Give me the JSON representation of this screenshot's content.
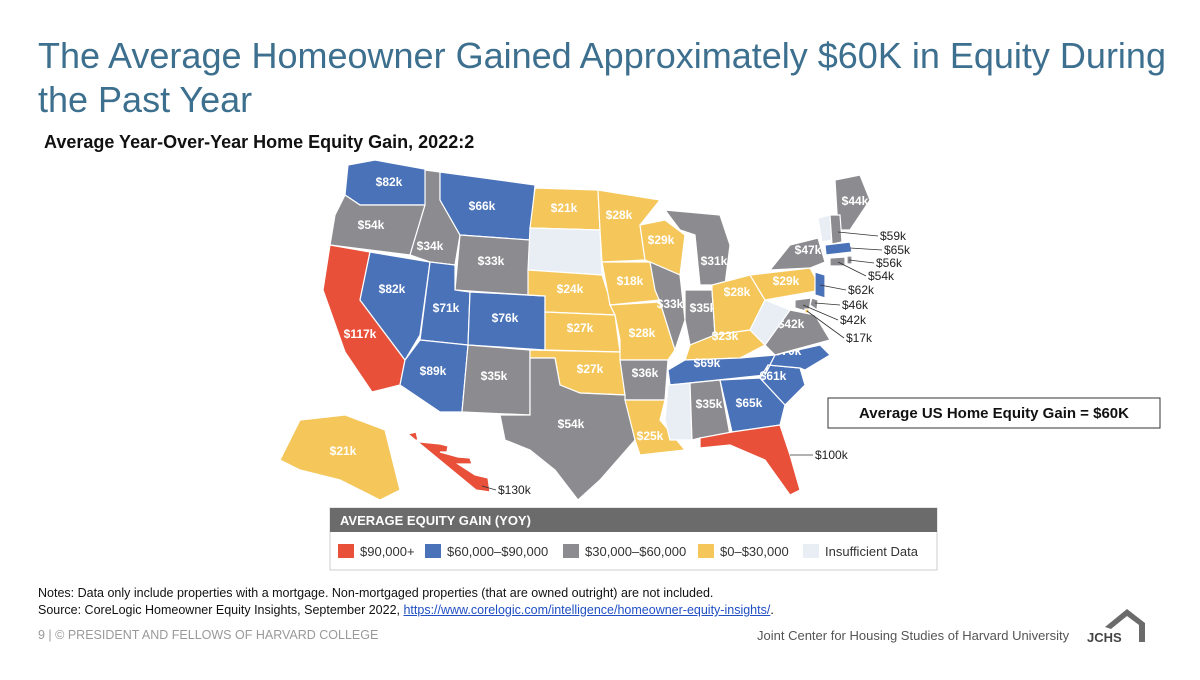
{
  "header": {
    "title": "The Average Homeowner Gained Approximately $60K in Equity During the Past Year",
    "subtitle": "Average Year-Over-Year Home Equity Gain, 2022:2"
  },
  "map": {
    "states": [
      {
        "label": "$82k",
        "color": "#4a72b8"
      },
      {
        "label": "$54k",
        "color": "#8c8c90"
      },
      {
        "label": "$117k",
        "color": "#e8503a"
      },
      {
        "label": "$82k",
        "color": "#4a72b8"
      },
      {
        "label": "$34k",
        "color": "#8c8c90"
      },
      {
        "label": "$66k",
        "color": "#4a72b8"
      },
      {
        "label": "$33k",
        "color": "#8c8c90"
      },
      {
        "label": "$71k",
        "color": "#4a72b8"
      },
      {
        "label": "$76k",
        "color": "#4a72b8"
      },
      {
        "label": "$89k",
        "color": "#4a72b8"
      },
      {
        "label": "$35k",
        "color": "#8c8c90"
      },
      {
        "label": "$21k",
        "color": "#f5c75a"
      },
      {
        "color": "#e8eef4"
      },
      {
        "label": "$24k",
        "color": "#f5c75a"
      },
      {
        "label": "$27k",
        "color": "#f5c75a"
      },
      {
        "label": "$27k",
        "color": "#f5c75a"
      },
      {
        "label": "$54k",
        "color": "#8c8c90"
      },
      {
        "label": "$28k",
        "color": "#f5c75a"
      },
      {
        "label": "$18k",
        "color": "#f5c75a"
      },
      {
        "label": "$28k",
        "color": "#f5c75a"
      },
      {
        "label": "$36k",
        "color": "#8c8c90"
      },
      {
        "label": "$25k",
        "color": "#f5c75a"
      },
      {
        "label": "$29k",
        "color": "#f5c75a"
      },
      {
        "label": "$33k",
        "color": "#8c8c90"
      },
      {
        "label": "$31k",
        "color": "#8c8c90"
      },
      {
        "label": "$35k",
        "color": "#8c8c90"
      },
      {
        "label": "$28k",
        "color": "#f5c75a"
      },
      {
        "label": "$23k",
        "color": "#f5c75a"
      },
      {
        "label": "$69k",
        "color": "#4a72b8"
      },
      {
        "color": "#e8eef4"
      },
      {
        "label": "$35k",
        "color": "#8c8c90"
      },
      {
        "label": "$65k",
        "color": "#4a72b8"
      },
      {
        "label": "$100k",
        "color": "#e8503a"
      },
      {
        "label": "$61k",
        "color": "#4a72b8"
      },
      {
        "label": "$70k",
        "color": "#4a72b8"
      },
      {
        "label": "$42k",
        "color": "#8c8c90"
      },
      {
        "color": "#e8eef4"
      },
      {
        "label": "$29k",
        "color": "#f5c75a"
      },
      {
        "label": "$47k",
        "color": "#8c8c90"
      },
      {
        "label": "$44k",
        "color": "#8c8c90"
      },
      {
        "color": "#e8eef4"
      },
      {
        "label": "$59k",
        "color": "#8c8c90"
      },
      {
        "label": "$65k",
        "color": "#4a72b8"
      },
      {
        "label": "$56k",
        "color": "#8c8c90"
      },
      {
        "label": "$54k",
        "color": "#8c8c90"
      },
      {
        "label": "$62k",
        "color": "#4a72b8"
      },
      {
        "label": "$46k",
        "color": "#8c8c90"
      },
      {
        "label": "$42k",
        "color": "#8c8c90"
      },
      {
        "label": "$17k",
        "color": "#f5c75a"
      },
      {
        "label": "$21k",
        "color": "#f5c75a"
      },
      {
        "label": "$130k",
        "color": "#e8503a"
      }
    ],
    "callout": "Average US Home Equity Gain = $60K",
    "legend": {
      "title": "AVERAGE EQUITY GAIN (YOY)",
      "items": [
        {
          "label": "$90,000+",
          "color": "#e8503a"
        },
        {
          "label": "$60,000–$90,000",
          "color": "#4a72b8"
        },
        {
          "label": "$30,000–$60,000",
          "color": "#8c8c90"
        },
        {
          "label": "$0–$30,000",
          "color": "#f5c75a"
        },
        {
          "label": "Insufficient Data",
          "color": "#e8eef4"
        }
      ]
    }
  },
  "notes": {
    "note": "Notes: Data only include properties with a mortgage. Non-mortgaged properties (that are owned outright) are not included.",
    "source": "Source: CoreLogic Homeowner Equity Insights, September 2022,",
    "link": "https://www.corelogic.com/intelligence/homeowner-equity-insights/",
    "end": "."
  },
  "footer": {
    "left": "9 | © PRESIDENT AND FELLOWS OF HARVARD COLLEGE",
    "right": "Joint Center for Housing Studies of Harvard University",
    "logo": "JCHS"
  }
}
